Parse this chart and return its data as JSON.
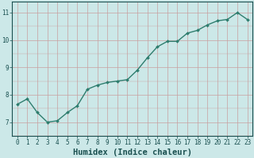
{
  "x": [
    0,
    1,
    2,
    3,
    4,
    5,
    6,
    7,
    8,
    9,
    10,
    11,
    12,
    13,
    14,
    15,
    16,
    17,
    18,
    19,
    20,
    21,
    22,
    23
  ],
  "y": [
    7.65,
    7.85,
    7.35,
    7.0,
    7.05,
    7.35,
    7.6,
    8.2,
    8.35,
    8.45,
    8.5,
    8.55,
    8.9,
    9.35,
    9.75,
    9.95,
    9.95,
    10.25,
    10.35,
    10.55,
    10.7,
    10.75,
    11.0,
    10.75
  ],
  "line_color": "#2e7d6e",
  "marker": "D",
  "marker_size": 2.0,
  "bg_color": "#cce8e8",
  "grid_color": "#c8a0a0",
  "axis_color": "#1a5050",
  "xlabel": "Humidex (Indice chaleur)",
  "ylim": [
    6.5,
    11.4
  ],
  "xlim": [
    -0.5,
    23.5
  ],
  "yticks": [
    7,
    8,
    9,
    10,
    11
  ],
  "xticks": [
    0,
    1,
    2,
    3,
    4,
    5,
    6,
    7,
    8,
    9,
    10,
    11,
    12,
    13,
    14,
    15,
    16,
    17,
    18,
    19,
    20,
    21,
    22,
    23
  ],
  "tick_label_fontsize": 5.5,
  "xlabel_fontsize": 7.5,
  "linewidth": 1.0
}
